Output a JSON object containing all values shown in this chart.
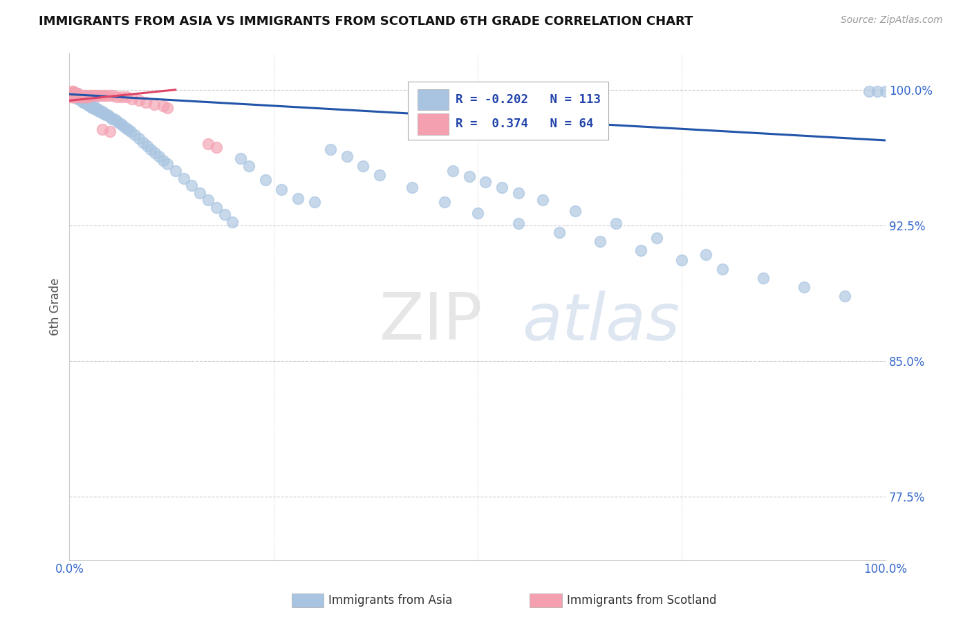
{
  "title": "IMMIGRANTS FROM ASIA VS IMMIGRANTS FROM SCOTLAND 6TH GRADE CORRELATION CHART",
  "source_text": "Source: ZipAtlas.com",
  "ylabel": "6th Grade",
  "xlim": [
    0,
    1.0
  ],
  "ylim": [
    0.74,
    1.02
  ],
  "yticks": [
    0.775,
    0.85,
    0.925,
    1.0
  ],
  "ytick_labels": [
    "77.5%",
    "85.0%",
    "92.5%",
    "100.0%"
  ],
  "legend_r_blue": "-0.202",
  "legend_n_blue": "113",
  "legend_r_pink": "0.374",
  "legend_n_pink": "64",
  "blue_color": "#a8c4e0",
  "pink_color": "#f4a0b0",
  "blue_line_color": "#2255aa",
  "pink_line_color": "#dd4466",
  "watermark_zip": "ZIP",
  "watermark_atlas": "atlas",
  "background_color": "#ffffff",
  "blue_scatter_x": [
    0.003,
    0.003,
    0.004,
    0.005,
    0.005,
    0.006,
    0.006,
    0.007,
    0.007,
    0.008,
    0.008,
    0.009,
    0.009,
    0.01,
    0.01,
    0.01,
    0.01,
    0.012,
    0.012,
    0.013,
    0.014,
    0.015,
    0.015,
    0.016,
    0.017,
    0.018,
    0.018,
    0.019,
    0.02,
    0.02,
    0.021,
    0.022,
    0.023,
    0.024,
    0.025,
    0.026,
    0.027,
    0.028,
    0.029,
    0.03,
    0.031,
    0.032,
    0.034,
    0.035,
    0.036,
    0.038,
    0.04,
    0.041,
    0.043,
    0.045,
    0.047,
    0.05,
    0.052,
    0.055,
    0.057,
    0.06,
    0.063,
    0.066,
    0.069,
    0.072,
    0.075,
    0.08,
    0.085,
    0.09,
    0.095,
    0.1,
    0.105,
    0.11,
    0.115,
    0.12,
    0.13,
    0.14,
    0.15,
    0.16,
    0.17,
    0.18,
    0.19,
    0.2,
    0.21,
    0.22,
    0.24,
    0.26,
    0.28,
    0.3,
    0.32,
    0.34,
    0.36,
    0.38,
    0.42,
    0.46,
    0.5,
    0.55,
    0.6,
    0.65,
    0.7,
    0.75,
    0.8,
    0.85,
    0.9,
    0.95,
    0.98,
    0.99,
    1.0,
    0.47,
    0.49,
    0.51,
    0.53,
    0.55,
    0.58,
    0.62,
    0.67,
    0.72,
    0.78
  ],
  "blue_scatter_y": [
    0.998,
    0.997,
    0.997,
    0.998,
    0.997,
    0.997,
    0.996,
    0.997,
    0.996,
    0.997,
    0.996,
    0.997,
    0.996,
    0.998,
    0.997,
    0.996,
    0.995,
    0.996,
    0.995,
    0.995,
    0.994,
    0.995,
    0.994,
    0.994,
    0.993,
    0.994,
    0.993,
    0.993,
    0.994,
    0.993,
    0.993,
    0.992,
    0.992,
    0.991,
    0.992,
    0.991,
    0.991,
    0.99,
    0.99,
    0.991,
    0.99,
    0.989,
    0.989,
    0.989,
    0.988,
    0.988,
    0.988,
    0.987,
    0.987,
    0.986,
    0.986,
    0.985,
    0.984,
    0.984,
    0.983,
    0.982,
    0.981,
    0.98,
    0.979,
    0.978,
    0.977,
    0.975,
    0.973,
    0.971,
    0.969,
    0.967,
    0.965,
    0.963,
    0.961,
    0.959,
    0.955,
    0.951,
    0.947,
    0.943,
    0.939,
    0.935,
    0.931,
    0.927,
    0.962,
    0.958,
    0.95,
    0.945,
    0.94,
    0.938,
    0.967,
    0.963,
    0.958,
    0.953,
    0.946,
    0.938,
    0.932,
    0.926,
    0.921,
    0.916,
    0.911,
    0.906,
    0.901,
    0.896,
    0.891,
    0.886,
    0.999,
    0.999,
    0.999,
    0.955,
    0.952,
    0.949,
    0.946,
    0.943,
    0.939,
    0.933,
    0.926,
    0.918,
    0.909
  ],
  "pink_scatter_x": [
    0.002,
    0.002,
    0.002,
    0.003,
    0.003,
    0.003,
    0.003,
    0.004,
    0.004,
    0.004,
    0.005,
    0.005,
    0.005,
    0.005,
    0.006,
    0.006,
    0.006,
    0.007,
    0.007,
    0.008,
    0.008,
    0.008,
    0.009,
    0.009,
    0.01,
    0.01,
    0.011,
    0.012,
    0.012,
    0.013,
    0.014,
    0.015,
    0.015,
    0.016,
    0.017,
    0.018,
    0.019,
    0.02,
    0.02,
    0.021,
    0.022,
    0.023,
    0.025,
    0.027,
    0.03,
    0.033,
    0.036,
    0.04,
    0.044,
    0.048,
    0.053,
    0.058,
    0.064,
    0.07,
    0.077,
    0.085,
    0.094,
    0.104,
    0.115,
    0.12,
    0.04,
    0.05,
    0.17,
    0.18
  ],
  "pink_scatter_y": [
    0.998,
    0.997,
    0.996,
    0.999,
    0.998,
    0.997,
    0.996,
    0.998,
    0.997,
    0.996,
    0.999,
    0.998,
    0.997,
    0.996,
    0.998,
    0.997,
    0.996,
    0.998,
    0.997,
    0.998,
    0.997,
    0.996,
    0.997,
    0.996,
    0.998,
    0.997,
    0.997,
    0.997,
    0.996,
    0.996,
    0.996,
    0.997,
    0.996,
    0.996,
    0.996,
    0.997,
    0.996,
    0.997,
    0.996,
    0.996,
    0.996,
    0.996,
    0.997,
    0.997,
    0.997,
    0.997,
    0.997,
    0.997,
    0.997,
    0.997,
    0.997,
    0.996,
    0.996,
    0.996,
    0.995,
    0.994,
    0.993,
    0.992,
    0.991,
    0.99,
    0.978,
    0.977,
    0.97,
    0.968
  ],
  "blue_trend_x": [
    0.0,
    1.0
  ],
  "blue_trend_y": [
    0.9975,
    0.972
  ],
  "pink_trend_x": [
    0.0,
    0.13
  ],
  "pink_trend_y": [
    0.994,
    1.0
  ]
}
